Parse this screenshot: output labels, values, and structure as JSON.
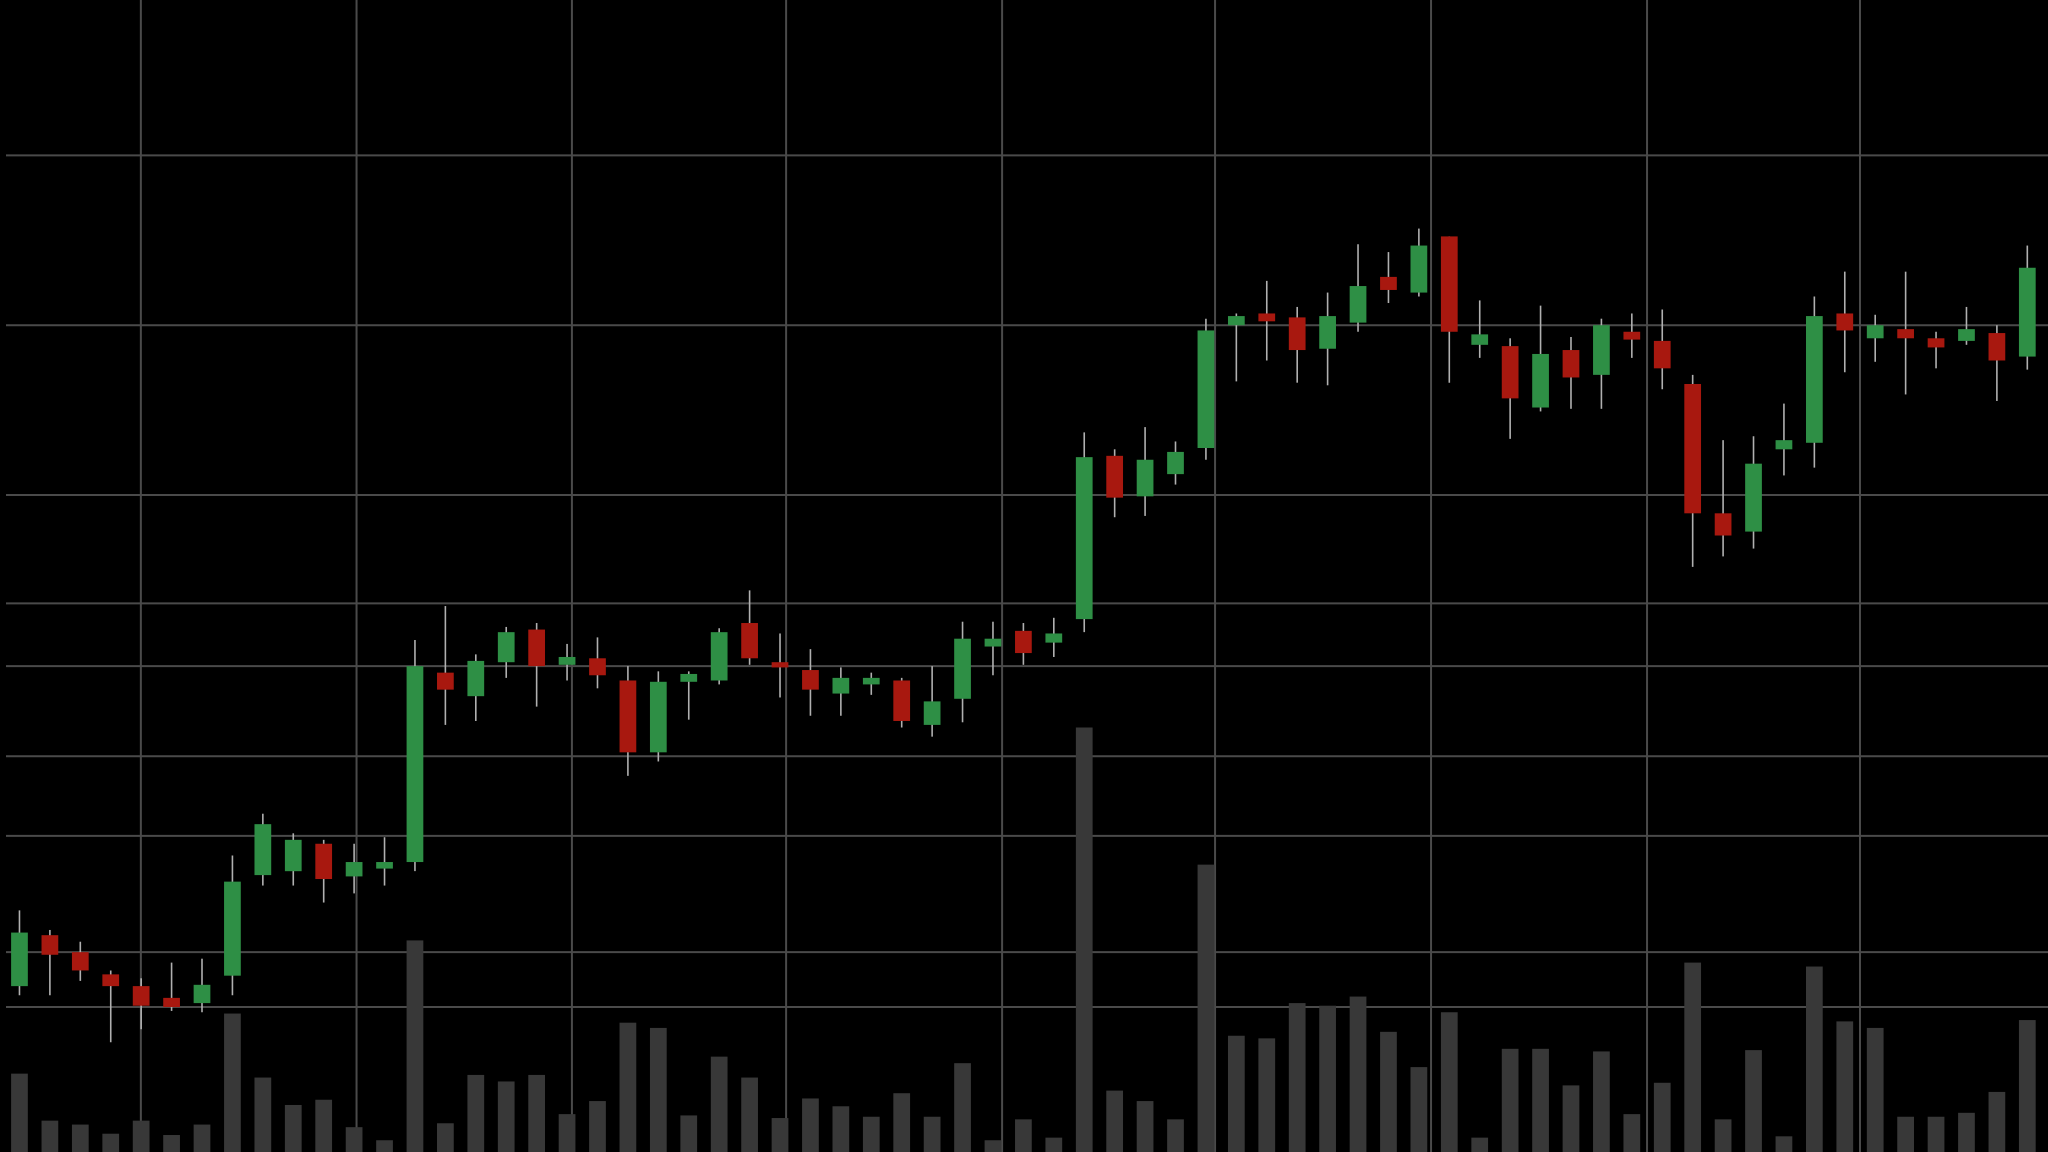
{
  "chart_data": {
    "type": "candlestick",
    "x": [
      0,
      1,
      2,
      3,
      4,
      5,
      6,
      7,
      8,
      9,
      10,
      11,
      12,
      13,
      14,
      15,
      16,
      17,
      18,
      19,
      20,
      21,
      22,
      23,
      24,
      25,
      26,
      27,
      28,
      29,
      30,
      31,
      32,
      33,
      34,
      35,
      36,
      37,
      38,
      39,
      40,
      41,
      42,
      43,
      44,
      45,
      46,
      47,
      48,
      49,
      50,
      51,
      52,
      53,
      54,
      55,
      56,
      57,
      58,
      59,
      60,
      61,
      62,
      63,
      64,
      65,
      66
    ],
    "open": [
      12.7,
      16.6,
      15.3,
      13.6,
      12.7,
      11.8,
      11.4,
      13.5,
      21.2,
      21.5,
      23.6,
      21.1,
      21.7,
      22.2,
      36.7,
      34.9,
      37.5,
      40.0,
      37.3,
      37.8,
      36.1,
      30.6,
      36.0,
      36.1,
      40.5,
      37.5,
      36.9,
      35.1,
      35.8,
      36.1,
      32.7,
      34.7,
      38.7,
      39.9,
      39.0,
      40.8,
      53.3,
      50.2,
      51.9,
      53.9,
      63.3,
      64.2,
      63.9,
      61.5,
      63.5,
      67.0,
      65.8,
      70.1,
      61.8,
      61.7,
      57.0,
      61.4,
      59.5,
      62.8,
      62.1,
      58.8,
      48.9,
      47.5,
      53.8,
      54.3,
      64.2,
      62.3,
      63.0,
      62.3,
      62.1,
      62.7,
      60.9
    ],
    "high": [
      18.5,
      17.0,
      16.1,
      13.9,
      13.3,
      14.5,
      14.8,
      22.7,
      25.9,
      24.4,
      23.9,
      23.6,
      24.1,
      39.2,
      41.8,
      38.1,
      40.2,
      40.5,
      38.9,
      39.4,
      37.2,
      36.8,
      36.8,
      40.1,
      43.0,
      39.7,
      38.5,
      37.1,
      36.7,
      36.3,
      37.2,
      40.6,
      40.6,
      40.5,
      40.9,
      55.1,
      53.8,
      55.5,
      54.4,
      63.8,
      64.2,
      66.7,
      64.7,
      65.8,
      69.5,
      68.9,
      70.7,
      70.1,
      65.2,
      62.3,
      64.8,
      62.4,
      63.8,
      64.2,
      64.5,
      59.5,
      54.5,
      54.8,
      57.3,
      65.5,
      67.4,
      64.1,
      67.4,
      62.8,
      64.7,
      63.3,
      69.4
    ],
    "low": [
      12.0,
      12.0,
      13.1,
      8.4,
      9.4,
      10.8,
      10.7,
      12.0,
      20.4,
      20.4,
      19.1,
      19.8,
      20.4,
      21.5,
      32.7,
      33.0,
      36.3,
      34.1,
      36.1,
      35.5,
      28.8,
      29.9,
      33.1,
      35.8,
      37.3,
      34.8,
      33.4,
      33.4,
      35.0,
      32.5,
      31.8,
      32.9,
      36.5,
      37.3,
      37.9,
      39.8,
      48.6,
      48.7,
      51.1,
      53.0,
      59.0,
      60.6,
      58.9,
      58.7,
      62.8,
      65.0,
      65.5,
      58.9,
      60.8,
      54.6,
      56.7,
      56.9,
      56.9,
      60.8,
      58.4,
      44.8,
      45.6,
      46.2,
      51.8,
      52.4,
      59.7,
      60.5,
      58.0,
      60.0,
      61.8,
      57.5,
      59.9
    ],
    "close": [
      16.8,
      15.1,
      13.9,
      12.7,
      11.2,
      11.1,
      12.8,
      20.7,
      25.1,
      23.9,
      20.9,
      22.2,
      22.2,
      37.2,
      35.4,
      37.6,
      39.8,
      37.2,
      37.9,
      36.5,
      30.6,
      36.0,
      36.6,
      39.8,
      37.8,
      37.1,
      35.4,
      36.3,
      36.3,
      33.0,
      34.5,
      39.3,
      39.3,
      38.2,
      39.7,
      53.2,
      50.1,
      53.0,
      53.6,
      62.9,
      64.0,
      63.6,
      61.4,
      64.0,
      66.3,
      66.0,
      69.4,
      62.8,
      62.6,
      57.7,
      61.1,
      59.3,
      63.3,
      62.2,
      60.0,
      48.9,
      47.2,
      52.7,
      54.5,
      64.0,
      62.9,
      63.3,
      62.3,
      61.6,
      63.0,
      60.6,
      67.7
    ],
    "volume": [
      6.0,
      2.4,
      2.1,
      1.4,
      2.4,
      1.3,
      2.1,
      10.6,
      5.7,
      3.6,
      4.0,
      1.9,
      0.9,
      16.2,
      2.2,
      5.9,
      5.4,
      5.9,
      2.9,
      3.9,
      9.9,
      9.5,
      2.8,
      7.3,
      5.7,
      2.6,
      4.1,
      3.5,
      2.7,
      4.5,
      2.7,
      6.8,
      0.9,
      2.5,
      1.1,
      32.5,
      4.7,
      3.9,
      2.5,
      22.0,
      8.9,
      8.7,
      11.4,
      11.2,
      11.9,
      9.2,
      6.5,
      10.7,
      1.1,
      7.9,
      7.9,
      5.1,
      7.7,
      2.9,
      5.3,
      14.5,
      2.5,
      7.8,
      1.2,
      14.2,
      10.0,
      9.5,
      2.7,
      2.7,
      3.0,
      4.6,
      10.1
    ],
    "up_color": "#2e8f45",
    "down_color": "#a8180f",
    "wick_color": "#b0b0b0",
    "volume_color": "#383838",
    "xlim": [
      -0.64,
      66.68
    ],
    "xticks": [
      3.99,
      11.08,
      18.16,
      25.2,
      32.3,
      39.3,
      46.4,
      53.5,
      60.5
    ],
    "ylim": [
      0,
      88.2
    ],
    "yticks": [
      11.1,
      15.3,
      24.2,
      30.3,
      37.2,
      42,
      50.3,
      63.3,
      76.3
    ],
    "grid": true
  }
}
